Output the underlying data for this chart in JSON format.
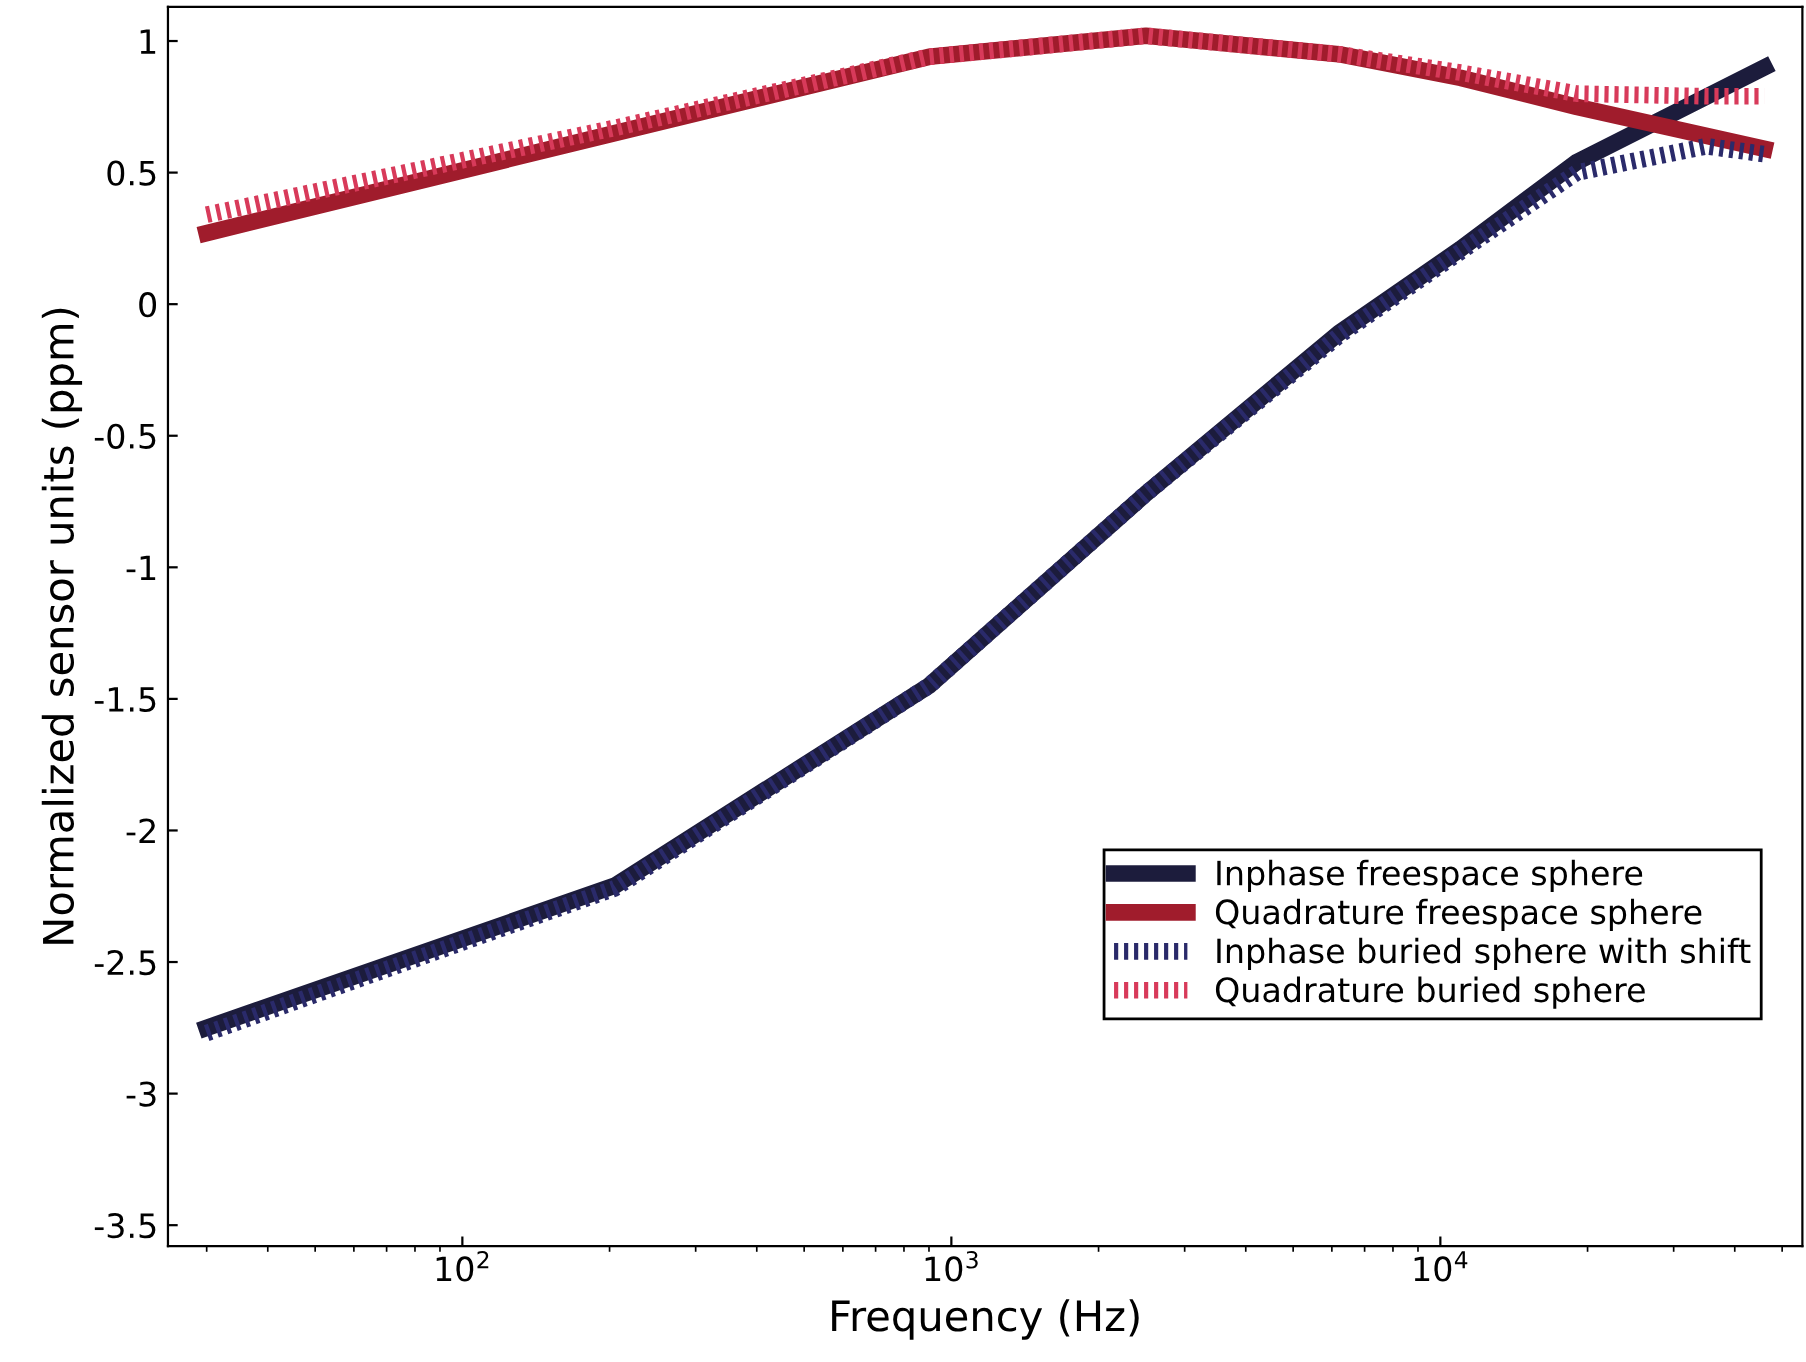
{
  "chart_data": {
    "type": "line",
    "xlabel": "Frequency (Hz)",
    "ylabel": "Normalized sensor units (ppm)",
    "log": "x",
    "xlim": [
      25,
      55000
    ],
    "xticks": [
      {
        "value": 100,
        "label": "10$^{2}$"
      },
      {
        "value": 1000,
        "label": "10$^{3}$"
      },
      {
        "value": 10000,
        "label": "10$^{4}$"
      }
    ],
    "ylim": [
      -3.58,
      1.13
    ],
    "yticks": [
      -3.5,
      -3,
      -2.5,
      -2,
      -1.5,
      -1,
      -0.5,
      0,
      0.5,
      1
    ],
    "grid": false,
    "legend": "bottom right",
    "series": [
      {
        "name": "Inphase freespace sphere",
        "color": "#1c1c3c",
        "line_style": "solid",
        "x": [
          30,
          205,
          900,
          2500,
          6200,
          11000,
          19000,
          46000
        ],
        "values": [
          -2.75,
          -2.21,
          -1.45,
          -0.72,
          -0.11,
          0.21,
          0.54,
          0.9
        ]
      },
      {
        "name": "Quadrature freespace sphere",
        "color": "#a01c2c",
        "line_style": "solid",
        "x": [
          30,
          205,
          900,
          2500,
          6200,
          11000,
          19000,
          46000
        ],
        "values": [
          0.27,
          0.65,
          0.94,
          1.02,
          0.95,
          0.86,
          0.75,
          0.59
        ]
      },
      {
        "name": "Inphase buried sphere with shift",
        "color": "#2a2a6a",
        "line_style": "dotted",
        "x": [
          30,
          205,
          900,
          2500,
          6200,
          11000,
          19000,
          35000,
          46000
        ],
        "values": [
          -2.77,
          -2.22,
          -1.45,
          -0.72,
          -0.12,
          0.2,
          0.5,
          0.6,
          0.57
        ]
      },
      {
        "name": "Quadrature buried sphere",
        "color": "#d83a5a",
        "line_style": "dotted",
        "x": [
          30,
          205,
          900,
          2500,
          6200,
          11000,
          19000,
          35000,
          46000
        ],
        "values": [
          0.34,
          0.67,
          0.94,
          1.02,
          0.95,
          0.88,
          0.8,
          0.79,
          0.79
        ]
      }
    ]
  }
}
